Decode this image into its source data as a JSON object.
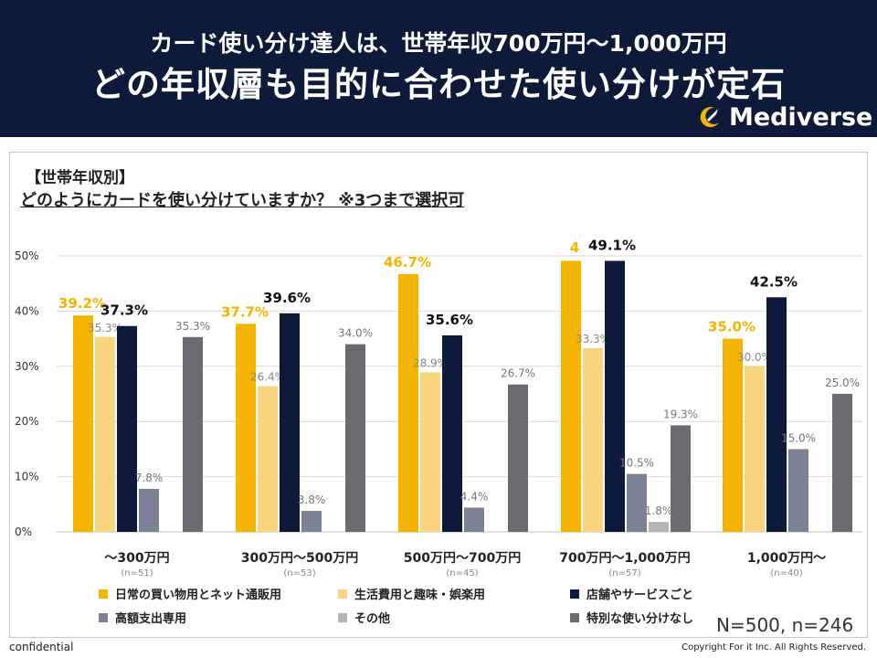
{
  "header": {
    "title_line1": "カード使い分け達人は、世帯年収700万円〜1,000万円",
    "title_line2": "どの年収層も目的に合わせた使い分けが定石",
    "logo_text": "Mediverse"
  },
  "section_label": "【世帯年収別】",
  "question": "どのようにカードを使い分けていますか？ ※3つまで選択可",
  "sample_note": "N=500, n=246",
  "footer": {
    "confidential": "confidential",
    "copyright": "Copyright For it Inc. All Rights Reserved."
  },
  "chart_data": {
    "type": "bar",
    "categories": [
      "〜300万円",
      "300万円〜500万円",
      "500万円〜700万円",
      "700万円〜1,000万円",
      "1,000万円〜"
    ],
    "category_notes": [
      "(n=51)",
      "(n=53)",
      "(n=45)",
      "(n=57)",
      "(n=40)"
    ],
    "ylim": [
      0,
      50
    ],
    "yticks": [
      "0%",
      "10%",
      "20%",
      "30%",
      "40%",
      "50%"
    ],
    "grid": true,
    "series": [
      {
        "name": "日常の買い物用とネット通販用",
        "color": "#f5b400",
        "values": [
          39.2,
          37.7,
          46.7,
          49.1,
          35.0
        ]
      },
      {
        "name": "生活費用と趣味・娯楽用",
        "color": "#f8d57e",
        "values": [
          35.3,
          26.4,
          28.9,
          33.3,
          30.0
        ]
      },
      {
        "name": "店舗やサービスごと",
        "color": "#0e1a3a",
        "values": [
          37.3,
          39.6,
          35.6,
          49.1,
          42.5
        ]
      },
      {
        "name": "高額支出専用",
        "color": "#7d8195",
        "values": [
          7.8,
          3.8,
          4.4,
          10.5,
          15.0
        ]
      },
      {
        "name": "その他",
        "color": "#b5b5b8",
        "values": [
          0.0,
          0.0,
          0.0,
          1.8,
          0.0
        ]
      },
      {
        "name": "特別な使い分けなし",
        "color": "#6b6a70",
        "values": [
          35.3,
          34.0,
          26.7,
          19.3,
          25.0
        ]
      }
    ],
    "data_labels": [
      [
        "39.2%",
        "35.3%",
        "37.3%",
        "7.8%",
        "",
        "35.3%"
      ],
      [
        "37.7%",
        "26.4%",
        "39.6%",
        "3.8%",
        "",
        "34.0%"
      ],
      [
        "46.7%",
        "28.9%",
        "35.6%",
        "4.4%",
        "",
        "26.7%"
      ],
      [
        "",
        "33.3%",
        "49.1%",
        "10.5%",
        "1.8%",
        "19.3%"
      ],
      [
        "35.0%",
        "30.0%",
        "42.5%",
        "15.0%",
        "",
        "25.0%"
      ]
    ],
    "legend": "bottom"
  }
}
